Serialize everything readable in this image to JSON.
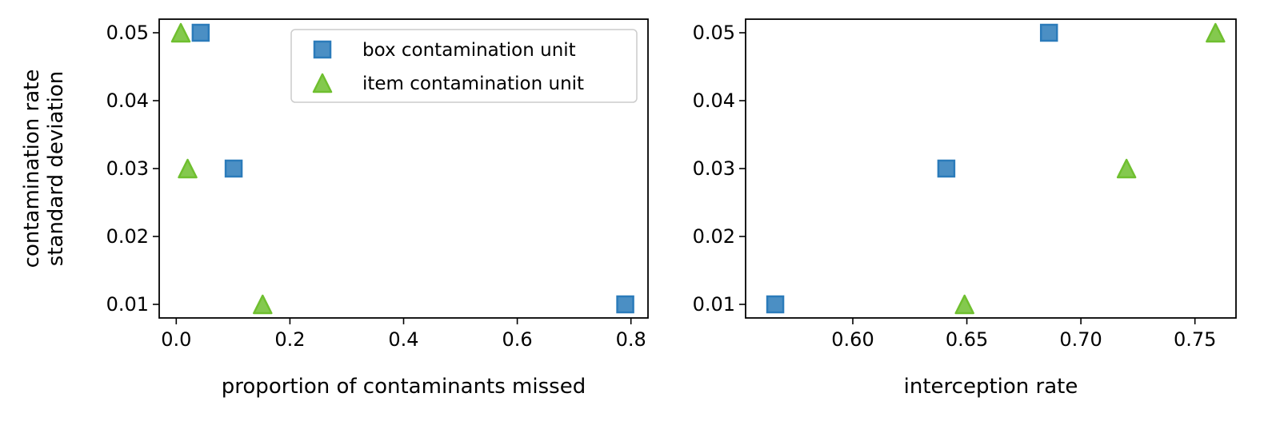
{
  "chart_data": [
    {
      "type": "scatter",
      "xlabel": "proportion of contaminants missed",
      "ylabel_lines": [
        "contamination rate",
        "standard deviation"
      ],
      "xlim": [
        -0.03,
        0.83
      ],
      "ylim": [
        0.008,
        0.052
      ],
      "xticks": [
        0.0,
        0.2,
        0.4,
        0.6,
        0.8
      ],
      "xtick_labels": [
        "0.0",
        "0.2",
        "0.4",
        "0.6",
        "0.8"
      ],
      "yticks": [
        0.01,
        0.02,
        0.03,
        0.04,
        0.05
      ],
      "ytick_labels": [
        "0.01",
        "0.02",
        "0.03",
        "0.04",
        "0.05"
      ],
      "legend": {
        "placement": "upper-right"
      },
      "series": [
        {
          "name": "box contamination unit",
          "marker": "square",
          "color": "#2b7bba",
          "points": [
            {
              "x": 0.043,
              "y": 0.05
            },
            {
              "x": 0.101,
              "y": 0.03
            },
            {
              "x": 0.79,
              "y": 0.01
            }
          ]
        },
        {
          "name": "item contamination unit",
          "marker": "triangle",
          "color": "#6fbf2f",
          "points": [
            {
              "x": 0.008,
              "y": 0.05
            },
            {
              "x": 0.02,
              "y": 0.03
            },
            {
              "x": 0.152,
              "y": 0.01
            }
          ]
        }
      ]
    },
    {
      "type": "scatter",
      "xlabel": "interception rate",
      "xlim": [
        0.553,
        0.768
      ],
      "ylim": [
        0.008,
        0.052
      ],
      "xticks": [
        0.6,
        0.65,
        0.7,
        0.75
      ],
      "xtick_labels": [
        "0.60",
        "0.65",
        "0.70",
        "0.75"
      ],
      "yticks": [
        0.01,
        0.02,
        0.03,
        0.04,
        0.05
      ],
      "ytick_labels": [
        "0.01",
        "0.02",
        "0.03",
        "0.04",
        "0.05"
      ],
      "series": [
        {
          "name": "box contamination unit",
          "marker": "square",
          "color": "#2b7bba",
          "points": [
            {
              "x": 0.686,
              "y": 0.05
            },
            {
              "x": 0.641,
              "y": 0.03
            },
            {
              "x": 0.566,
              "y": 0.01
            }
          ]
        },
        {
          "name": "item contamination unit",
          "marker": "triangle",
          "color": "#6fbf2f",
          "points": [
            {
              "x": 0.759,
              "y": 0.05
            },
            {
              "x": 0.72,
              "y": 0.03
            },
            {
              "x": 0.649,
              "y": 0.01
            }
          ]
        }
      ]
    }
  ]
}
